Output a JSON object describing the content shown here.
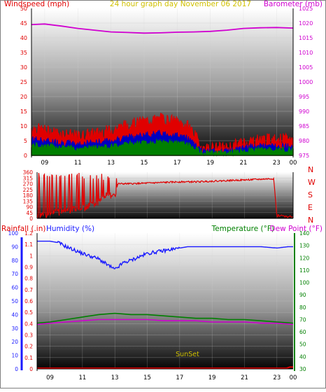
{
  "header": {
    "left_title": "Windspeed (mph)",
    "center_title": "24 hour graph day   November 06 2017",
    "right_title": "Barometer (mb)"
  },
  "lower_header": {
    "rainfall_label": "Rainfall (.in)",
    "humidity_label": "Humidity (%)",
    "temperature_label": "Temperature (°F)",
    "dewpoint_label": "Dew Point (°F)"
  },
  "compass_labels": [
    "N",
    "W",
    "S",
    "E",
    "N"
  ],
  "annotation": "SunSet",
  "colors": {
    "windspeed": "#e00000",
    "wind_avg": "#0000c0",
    "wind_low": "#008000",
    "barometer": "#d000d0",
    "title": "#d0c000",
    "humidity": "#1a1aff",
    "temperature": "#008000",
    "dewpoint": "#d000d0",
    "rainfall": "#e00000"
  },
  "chart_data": [
    {
      "type": "area",
      "title": "24 hour graph day   November 06 2017",
      "x_ticks": [
        "09",
        "11",
        "13",
        "15",
        "17",
        "19",
        "21",
        "23",
        "00"
      ],
      "y_left_label": "Windspeed (mph)",
      "y_left_ticks": [
        0,
        5,
        10,
        15,
        20,
        25,
        30,
        35,
        40,
        45,
        50
      ],
      "ylim_left": [
        0,
        50
      ],
      "y_right_label": "Barometer (mb)",
      "y_right_ticks": [
        975,
        980,
        985,
        990,
        995,
        1000,
        1005,
        1010,
        1015,
        1020,
        1025
      ],
      "ylim_right": [
        975,
        1025
      ],
      "series": [
        {
          "name": "Windspeed (mph)",
          "axis": "left",
          "x": [
            8.2,
            9,
            10,
            11,
            12,
            13,
            14,
            15,
            16,
            17,
            17.8,
            18.5,
            19,
            20,
            21,
            22,
            23,
            24
          ],
          "values": [
            9,
            8,
            7,
            6,
            7,
            8,
            10,
            11,
            12,
            11,
            9,
            2,
            2,
            2,
            4,
            5,
            5,
            5
          ]
        },
        {
          "name": "Barometer (mb)",
          "axis": "right",
          "x": [
            8.2,
            9,
            10,
            11,
            12,
            13,
            14,
            15,
            16,
            17,
            18,
            19,
            20,
            21,
            22,
            23,
            24
          ],
          "values": [
            1019.5,
            1019.7,
            1019,
            1018.2,
            1017.6,
            1017,
            1016.8,
            1016.6,
            1016.7,
            1016.9,
            1017,
            1017.2,
            1017.6,
            1018.2,
            1018.4,
            1018.5,
            1018.3
          ]
        }
      ]
    },
    {
      "type": "line",
      "y_right_labels": [
        "N",
        "W",
        "S",
        "E",
        "N"
      ],
      "y_ticks": [
        0,
        45,
        90,
        135,
        180,
        225,
        270,
        315,
        360
      ],
      "ylim": [
        0,
        360
      ],
      "series": [
        {
          "name": "Wind direction",
          "x": [
            8.2,
            9,
            10,
            11,
            12,
            12.5,
            13,
            13.2,
            14,
            15,
            16,
            17,
            18,
            19,
            20,
            21,
            22,
            22.8,
            23,
            24
          ],
          "values": [
            20,
            40,
            60,
            80,
            120,
            200,
            170,
            270,
            270,
            275,
            280,
            285,
            285,
            290,
            295,
            300,
            305,
            310,
            20,
            15
          ]
        }
      ]
    },
    {
      "type": "line",
      "x_ticks": [
        "09",
        "11",
        "13",
        "15",
        "17",
        "19",
        "21",
        "23",
        "00"
      ],
      "y_left_label": "Rainfall (.in)",
      "y_left_ticks": [
        0,
        0.1,
        0.2,
        0.3,
        0.4,
        0.5,
        0.6,
        0.7,
        0.8,
        0.9,
        1,
        1.1,
        1.2
      ],
      "ylim_left": [
        0,
        1.2
      ],
      "y_humidity_label": "Humidity (%)",
      "y_humidity_ticks": [
        0,
        10,
        20,
        30,
        40,
        50,
        60,
        70,
        80,
        90,
        100
      ],
      "ylim_humidity": [
        0,
        100
      ],
      "y_right_label": "Temperature (°F)",
      "y_right_ticks": [
        30,
        40,
        50,
        60,
        70,
        80,
        90,
        100,
        110,
        120,
        130,
        140
      ],
      "ylim_right": [
        30,
        140
      ],
      "annotations": [
        "SunSet"
      ],
      "series": [
        {
          "name": "Humidity (%)",
          "axis": "humidity",
          "x": [
            8.2,
            9,
            9.5,
            10,
            11,
            12,
            12.5,
            13,
            13.5,
            14,
            15,
            16,
            17,
            17.5,
            18,
            19,
            20,
            21,
            22,
            23,
            23.7,
            24
          ],
          "values": [
            94,
            94,
            93,
            90,
            85,
            81,
            77,
            73,
            78,
            80,
            85,
            87,
            89,
            90,
            90,
            90,
            90,
            90,
            90,
            89,
            90,
            90
          ]
        },
        {
          "name": "Temperature (°F)",
          "axis": "right",
          "x": [
            8.2,
            9,
            10,
            11,
            12,
            13,
            14,
            15,
            16,
            17,
            18,
            19,
            20,
            21,
            22,
            23,
            24
          ],
          "values": [
            67,
            68,
            70,
            72,
            74,
            75,
            74,
            74,
            73,
            72,
            71,
            71,
            70,
            70,
            69,
            68,
            67
          ]
        },
        {
          "name": "Dew Point (°F)",
          "axis": "right",
          "x": [
            8.2,
            9,
            10,
            11,
            12,
            13,
            14,
            15,
            16,
            17,
            18,
            19,
            20,
            21,
            22,
            23,
            24
          ],
          "values": [
            66,
            67,
            68,
            69,
            70,
            70,
            70,
            70,
            69,
            69,
            69,
            68,
            68,
            68,
            67,
            67,
            66
          ]
        },
        {
          "name": "Rainfall (.in)",
          "axis": "left",
          "x": [
            8.2,
            23.6,
            23.8,
            24
          ],
          "values": [
            0,
            0,
            0.01,
            0.01
          ]
        }
      ]
    }
  ]
}
